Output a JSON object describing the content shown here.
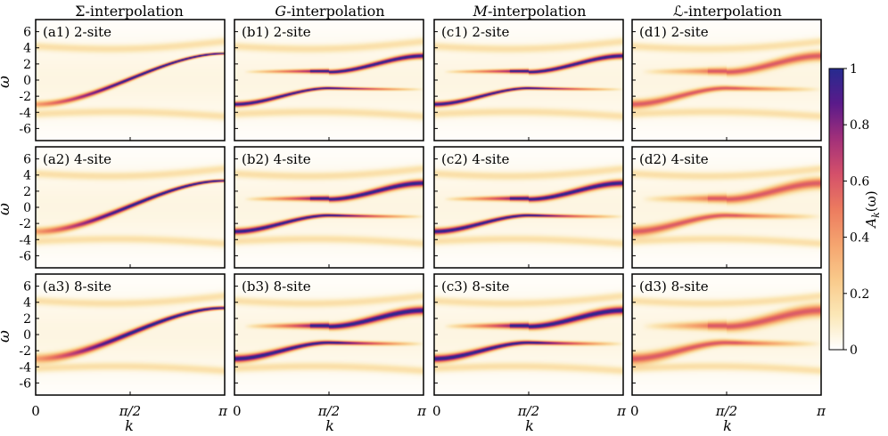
{
  "chart_data": {
    "type": "heatmap",
    "column_titles": [
      {
        "sym": "Σ",
        "italic": false,
        "rest": "-interpolation"
      },
      {
        "sym": "G",
        "italic": true,
        "rest": "-interpolation"
      },
      {
        "sym": "M",
        "italic": true,
        "rest": "-interpolation"
      },
      {
        "sym": "ℒ",
        "italic": false,
        "rest": "-interpolation"
      }
    ],
    "panel_labels": [
      [
        "(a1) 2-site",
        "(b1) 2-site",
        "(c1) 2-site",
        "(d1) 2-site"
      ],
      [
        "(a2) 4-site",
        "(b2) 4-site",
        "(c2) 4-site",
        "(d2) 4-site"
      ],
      [
        "(a3) 8-site",
        "(b3) 8-site",
        "(c3) 8-site",
        "(d3) 8-site"
      ]
    ],
    "xlabel": "k",
    "ylabel": "ω",
    "xlim": [
      0,
      3.14159
    ],
    "ylim": [
      -7.5,
      7.5
    ],
    "xticks": [
      {
        "value": 0,
        "label": "0"
      },
      {
        "value": 1.5708,
        "label": "π/2"
      },
      {
        "value": 3.14159,
        "label": "π"
      }
    ],
    "yticks": [
      6,
      4,
      2,
      0,
      -2,
      -4,
      -6
    ],
    "ytick_labels": [
      "6",
      "4",
      "2",
      "0",
      "-2",
      "-4",
      "-6"
    ],
    "colorbar": {
      "label_main": "A",
      "label_sub": "k",
      "label_arg": "(ω)",
      "range": [
        0,
        1
      ],
      "ticks": [
        1,
        0.8,
        0.6,
        0.4,
        0.2,
        0
      ],
      "tick_labels": [
        "1",
        "0.8",
        "0.6",
        "0.4",
        "0.2",
        "0"
      ],
      "colors": [
        "#ffffff",
        "#fbe7b6",
        "#f9c98a",
        "#f5a46f",
        "#ec7b5f",
        "#d4506a",
        "#a2307a",
        "#5a1a8a",
        "#262b8f"
      ]
    },
    "band_model": {
      "lower_band": {
        "omega_at_0": -3.0,
        "omega_at_mid": -1.0,
        "omega_at_pi": -1.0
      },
      "upper_band": {
        "omega_at_0": 1.0,
        "omega_at_mid": 1.0,
        "omega_at_pi": 3.0
      },
      "high_satellite": {
        "omega_at_0": 4.2,
        "omega_at_pi": 4.8
      },
      "low_satellite": {
        "omega_at_0": -4.2,
        "omega_at_pi": -4.5
      },
      "gap_by_column": [
        0.0,
        1.0,
        1.0,
        1.15
      ]
    }
  }
}
